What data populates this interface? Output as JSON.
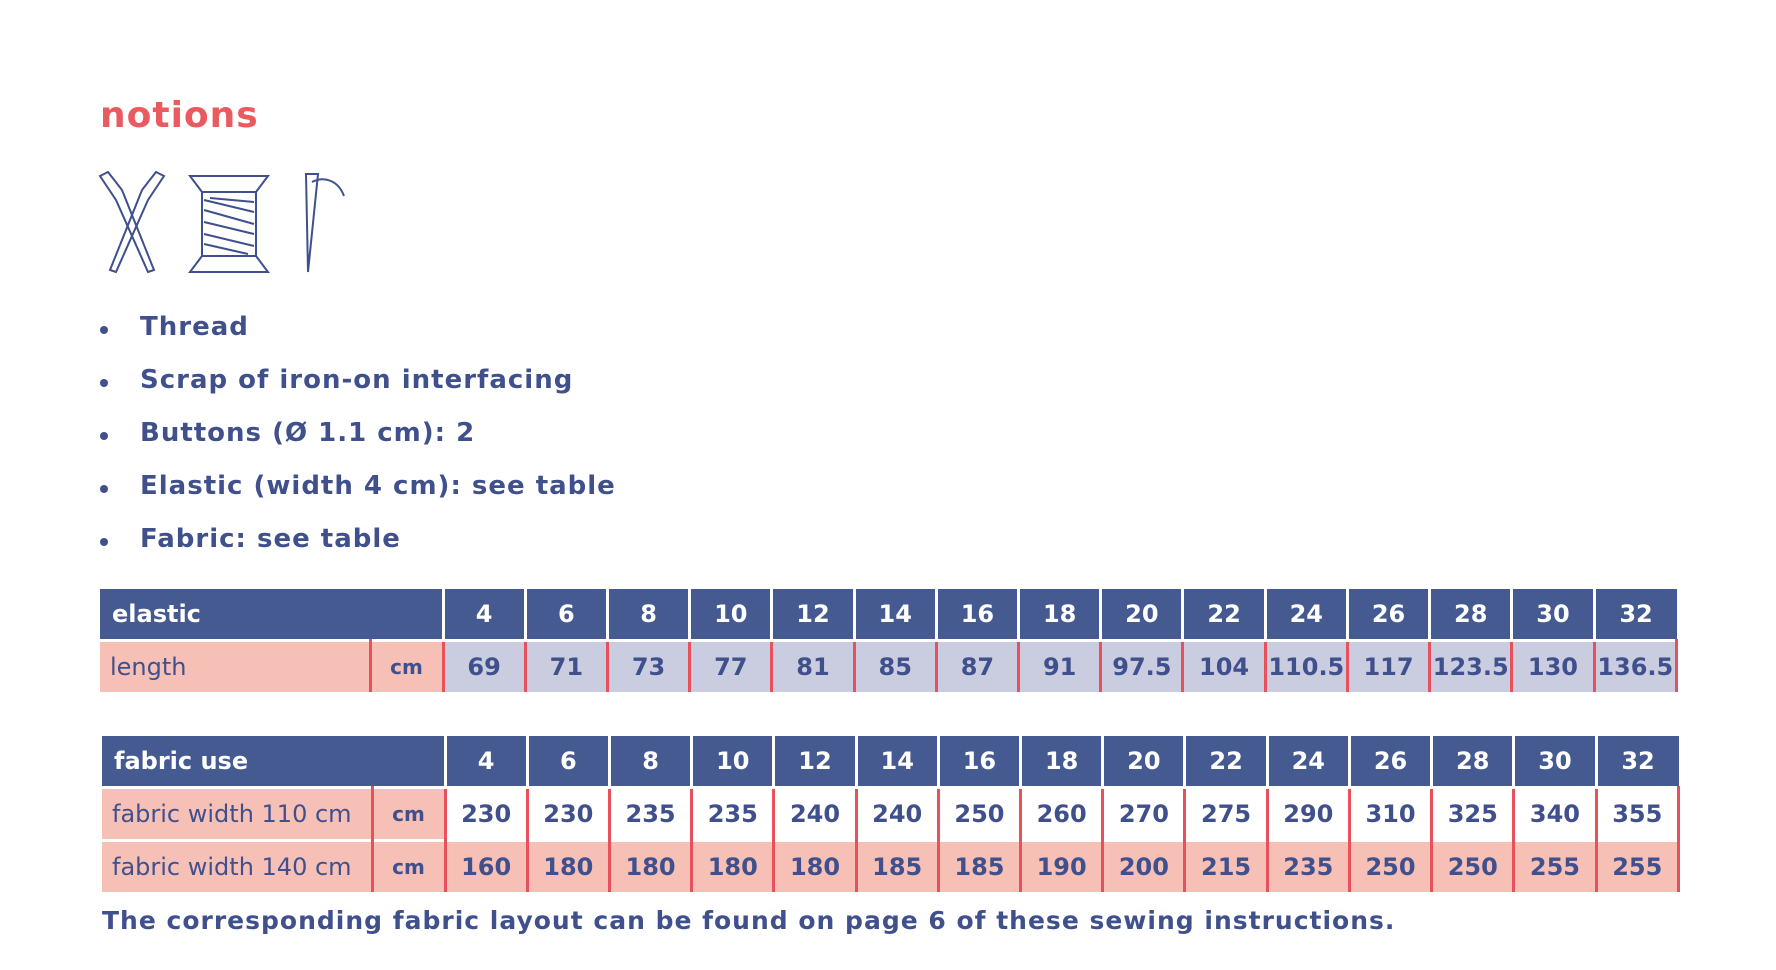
{
  "header": {
    "title": "notions"
  },
  "list": [
    "Thread",
    "Scrap of iron-on interfacing",
    "Buttons (Ø 1.1 cm): 2",
    "Elastic (width 4 cm): see table",
    "Fabric: see table"
  ],
  "elastic_table": {
    "title": "elastic",
    "sizes": [
      4,
      6,
      8,
      10,
      12,
      14,
      16,
      18,
      20,
      22,
      24,
      26,
      28,
      30,
      32
    ],
    "rows": [
      {
        "label": "length",
        "unit": "cm",
        "values": [
          69,
          71,
          73,
          77,
          81,
          85,
          87,
          91,
          97.5,
          104,
          110.5,
          117,
          123.5,
          130,
          136.5
        ]
      }
    ]
  },
  "fabric_table": {
    "title": "fabric use",
    "sizes": [
      4,
      6,
      8,
      10,
      12,
      14,
      16,
      18,
      20,
      22,
      24,
      26,
      28,
      30,
      32
    ],
    "rows": [
      {
        "label": "fabric width 110 cm",
        "unit": "cm",
        "values": [
          230,
          230,
          235,
          235,
          240,
          240,
          250,
          260,
          270,
          275,
          290,
          310,
          325,
          340,
          355
        ]
      },
      {
        "label": "fabric width 140 cm",
        "unit": "cm",
        "values": [
          160,
          180,
          180,
          180,
          180,
          185,
          185,
          190,
          200,
          215,
          235,
          250,
          250,
          255,
          255
        ]
      }
    ]
  },
  "footer": "The corresponding fabric layout can be found on page 6 of these sewing instructions."
}
